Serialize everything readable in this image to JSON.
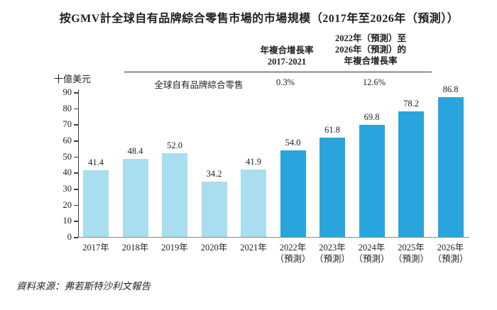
{
  "title": "按GMV計全球自有品牌綜合零售市場的市場規模（2017年至2026年（預測））",
  "y_axis_unit": "十億美元",
  "cagr_header": {
    "col1": [
      "年複合增長率",
      "2017-2021"
    ],
    "col2": [
      "2022年（預測）至",
      "2026年（預測）的",
      "年複合增長率"
    ]
  },
  "cagr_row": {
    "label": "全球自有品牌綜合零售",
    "cagr_2017_2021": "0.3%",
    "cagr_2022_2026": "12.6%"
  },
  "source": "資料來源：弗若斯特沙利文報告",
  "chart_data": {
    "type": "bar",
    "title": "按GMV計全球自有品牌綜合零售市場的市場規模（2017年至2026年（預測））",
    "ylabel": "十億美元",
    "ylim": [
      0,
      90
    ],
    "ytick_step": 10,
    "grid": false,
    "legend": "none",
    "bars": [
      {
        "category": "2017年",
        "note": "",
        "value": 41.4,
        "series": "historical"
      },
      {
        "category": "2018年",
        "note": "",
        "value": 48.4,
        "series": "historical"
      },
      {
        "category": "2019年",
        "note": "",
        "value": 52.0,
        "series": "historical"
      },
      {
        "category": "2020年",
        "note": "",
        "value": 34.2,
        "series": "historical"
      },
      {
        "category": "2021年",
        "note": "",
        "value": 41.9,
        "series": "historical"
      },
      {
        "category": "2022年",
        "note": "（預測）",
        "value": 54.0,
        "series": "forecast"
      },
      {
        "category": "2023年",
        "note": "（預測）",
        "value": 61.8,
        "series": "forecast"
      },
      {
        "category": "2024年",
        "note": "（預測）",
        "value": 69.8,
        "series": "forecast"
      },
      {
        "category": "2025年",
        "note": "（預測）",
        "value": 78.2,
        "series": "forecast"
      },
      {
        "category": "2026年",
        "note": "（預測）",
        "value": 86.8,
        "series": "forecast"
      }
    ],
    "colors": {
      "historical": "#A9DDF0",
      "forecast": "#2AA4DC"
    },
    "annotations": {
      "cagr_2017_2021": "0.3%",
      "cagr_2022_2026": "12.6%"
    }
  }
}
